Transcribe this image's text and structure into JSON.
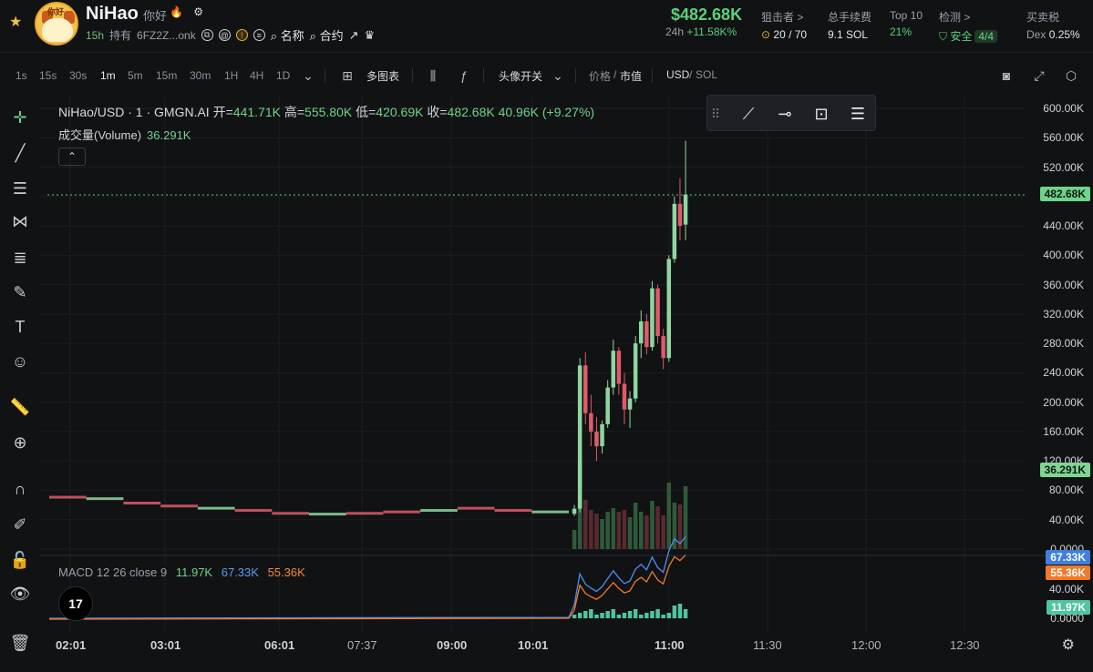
{
  "header": {
    "token_name": "NiHao",
    "token_cn": "你好",
    "avatar_text": "你好",
    "age": "15h",
    "holders_label": "持有",
    "address": "6FZ2Z...onk",
    "name_search": "名称",
    "contract_search": "合约",
    "price": "$482.68K",
    "change_label": "24h",
    "change_value": "+11.58K%",
    "snipers_label": "狙击者 >",
    "snipers_value": "20 / 70",
    "fees_label": "总手续费",
    "fees_value": "9.1 SOL",
    "top10_label": "Top 10",
    "top10_value": "21%",
    "check_label": "检测 >",
    "check_value": "安全",
    "check_badge": "4/4",
    "tax_label": "买卖税",
    "tax_value": "Dex",
    "tax_pct": "0.25%"
  },
  "toolbar": {
    "timeframes": [
      "1s",
      "15s",
      "30s",
      "1m",
      "5m",
      "15m",
      "30m",
      "1H",
      "4H",
      "1D"
    ],
    "active_timeframe": "1m",
    "multi_chart": "多图表",
    "avatar_toggle": "头像开关",
    "price_label": "价格",
    "mcap_label": "市值",
    "usd_label": "USD",
    "sol_label": "SOL"
  },
  "legend": {
    "symbol": "NiHao/USD · 1 · GMGN.AI",
    "open_label": "开=",
    "open": "441.71K",
    "high_label": "高=",
    "high": "555.80K",
    "low_label": "低=",
    "low": "420.69K",
    "close_label": "收=",
    "close": "482.68K",
    "change": "40.96K (+9.27%)",
    "volume_label": "成交量(Volume)",
    "volume": "36.291K"
  },
  "macd": {
    "label": "MACD 12 26 close 9",
    "hist": "11.97K",
    "macd": "67.33K",
    "signal": "55.36K"
  },
  "tv_logo": "17",
  "colors": {
    "up": "#8fd6a0",
    "down": "#e05a6a",
    "macd": "#4f8ff0",
    "signal": "#f07a2c",
    "accent": "#5cd07a"
  },
  "chart_data": {
    "type": "candlestick",
    "title": "NiHao/USD · 1 · GMGN.AI",
    "price_ticks": [
      "600.00K",
      "560.00K",
      "520.00K",
      "480.00K",
      "440.00K",
      "400.00K",
      "360.00K",
      "320.00K",
      "280.00K",
      "240.00K",
      "200.00K",
      "160.00K",
      "120.00K",
      "80.00K",
      "40.00K",
      "0.0000"
    ],
    "macd_ticks": [
      "67.33K",
      "40.00K",
      "11.97K",
      "0.0000"
    ],
    "x_ticks": [
      "02:01",
      "03:01",
      "06:01",
      "07:37",
      "09:00",
      "10:01",
      "11:00",
      "11:30",
      "12:00",
      "12:30"
    ],
    "last_price_label": "482.68K",
    "last_volume_label": "36.291K",
    "macd_label": "67.33K",
    "signal_label": "55.36K",
    "hist_label": "11.97K",
    "ylim": [
      0,
      600000
    ],
    "pre_launch_level_approx": [
      70000,
      68000,
      62000,
      58000,
      55000,
      52000,
      48000,
      47000,
      48000,
      50000,
      52000,
      55000,
      52000,
      50000
    ],
    "candles_ohlc": [
      [
        48000,
        60000,
        45000,
        55000
      ],
      [
        55000,
        260000,
        50000,
        250000
      ],
      [
        250000,
        268000,
        170000,
        185000
      ],
      [
        185000,
        210000,
        140000,
        160000
      ],
      [
        160000,
        180000,
        120000,
        140000
      ],
      [
        140000,
        175000,
        130000,
        170000
      ],
      [
        170000,
        230000,
        165000,
        220000
      ],
      [
        220000,
        285000,
        210000,
        270000
      ],
      [
        270000,
        275000,
        210000,
        225000
      ],
      [
        225000,
        240000,
        170000,
        190000
      ],
      [
        190000,
        215000,
        165000,
        205000
      ],
      [
        205000,
        290000,
        200000,
        280000
      ],
      [
        280000,
        325000,
        260000,
        310000
      ],
      [
        310000,
        320000,
        265000,
        275000
      ],
      [
        275000,
        365000,
        270000,
        355000
      ],
      [
        355000,
        360000,
        280000,
        290000
      ],
      [
        290000,
        300000,
        245000,
        260000
      ],
      [
        260000,
        400000,
        255000,
        395000
      ],
      [
        395000,
        480000,
        390000,
        470000
      ],
      [
        470000,
        505000,
        420000,
        440000
      ],
      [
        441710,
        555800,
        420690,
        482680
      ]
    ]
  }
}
